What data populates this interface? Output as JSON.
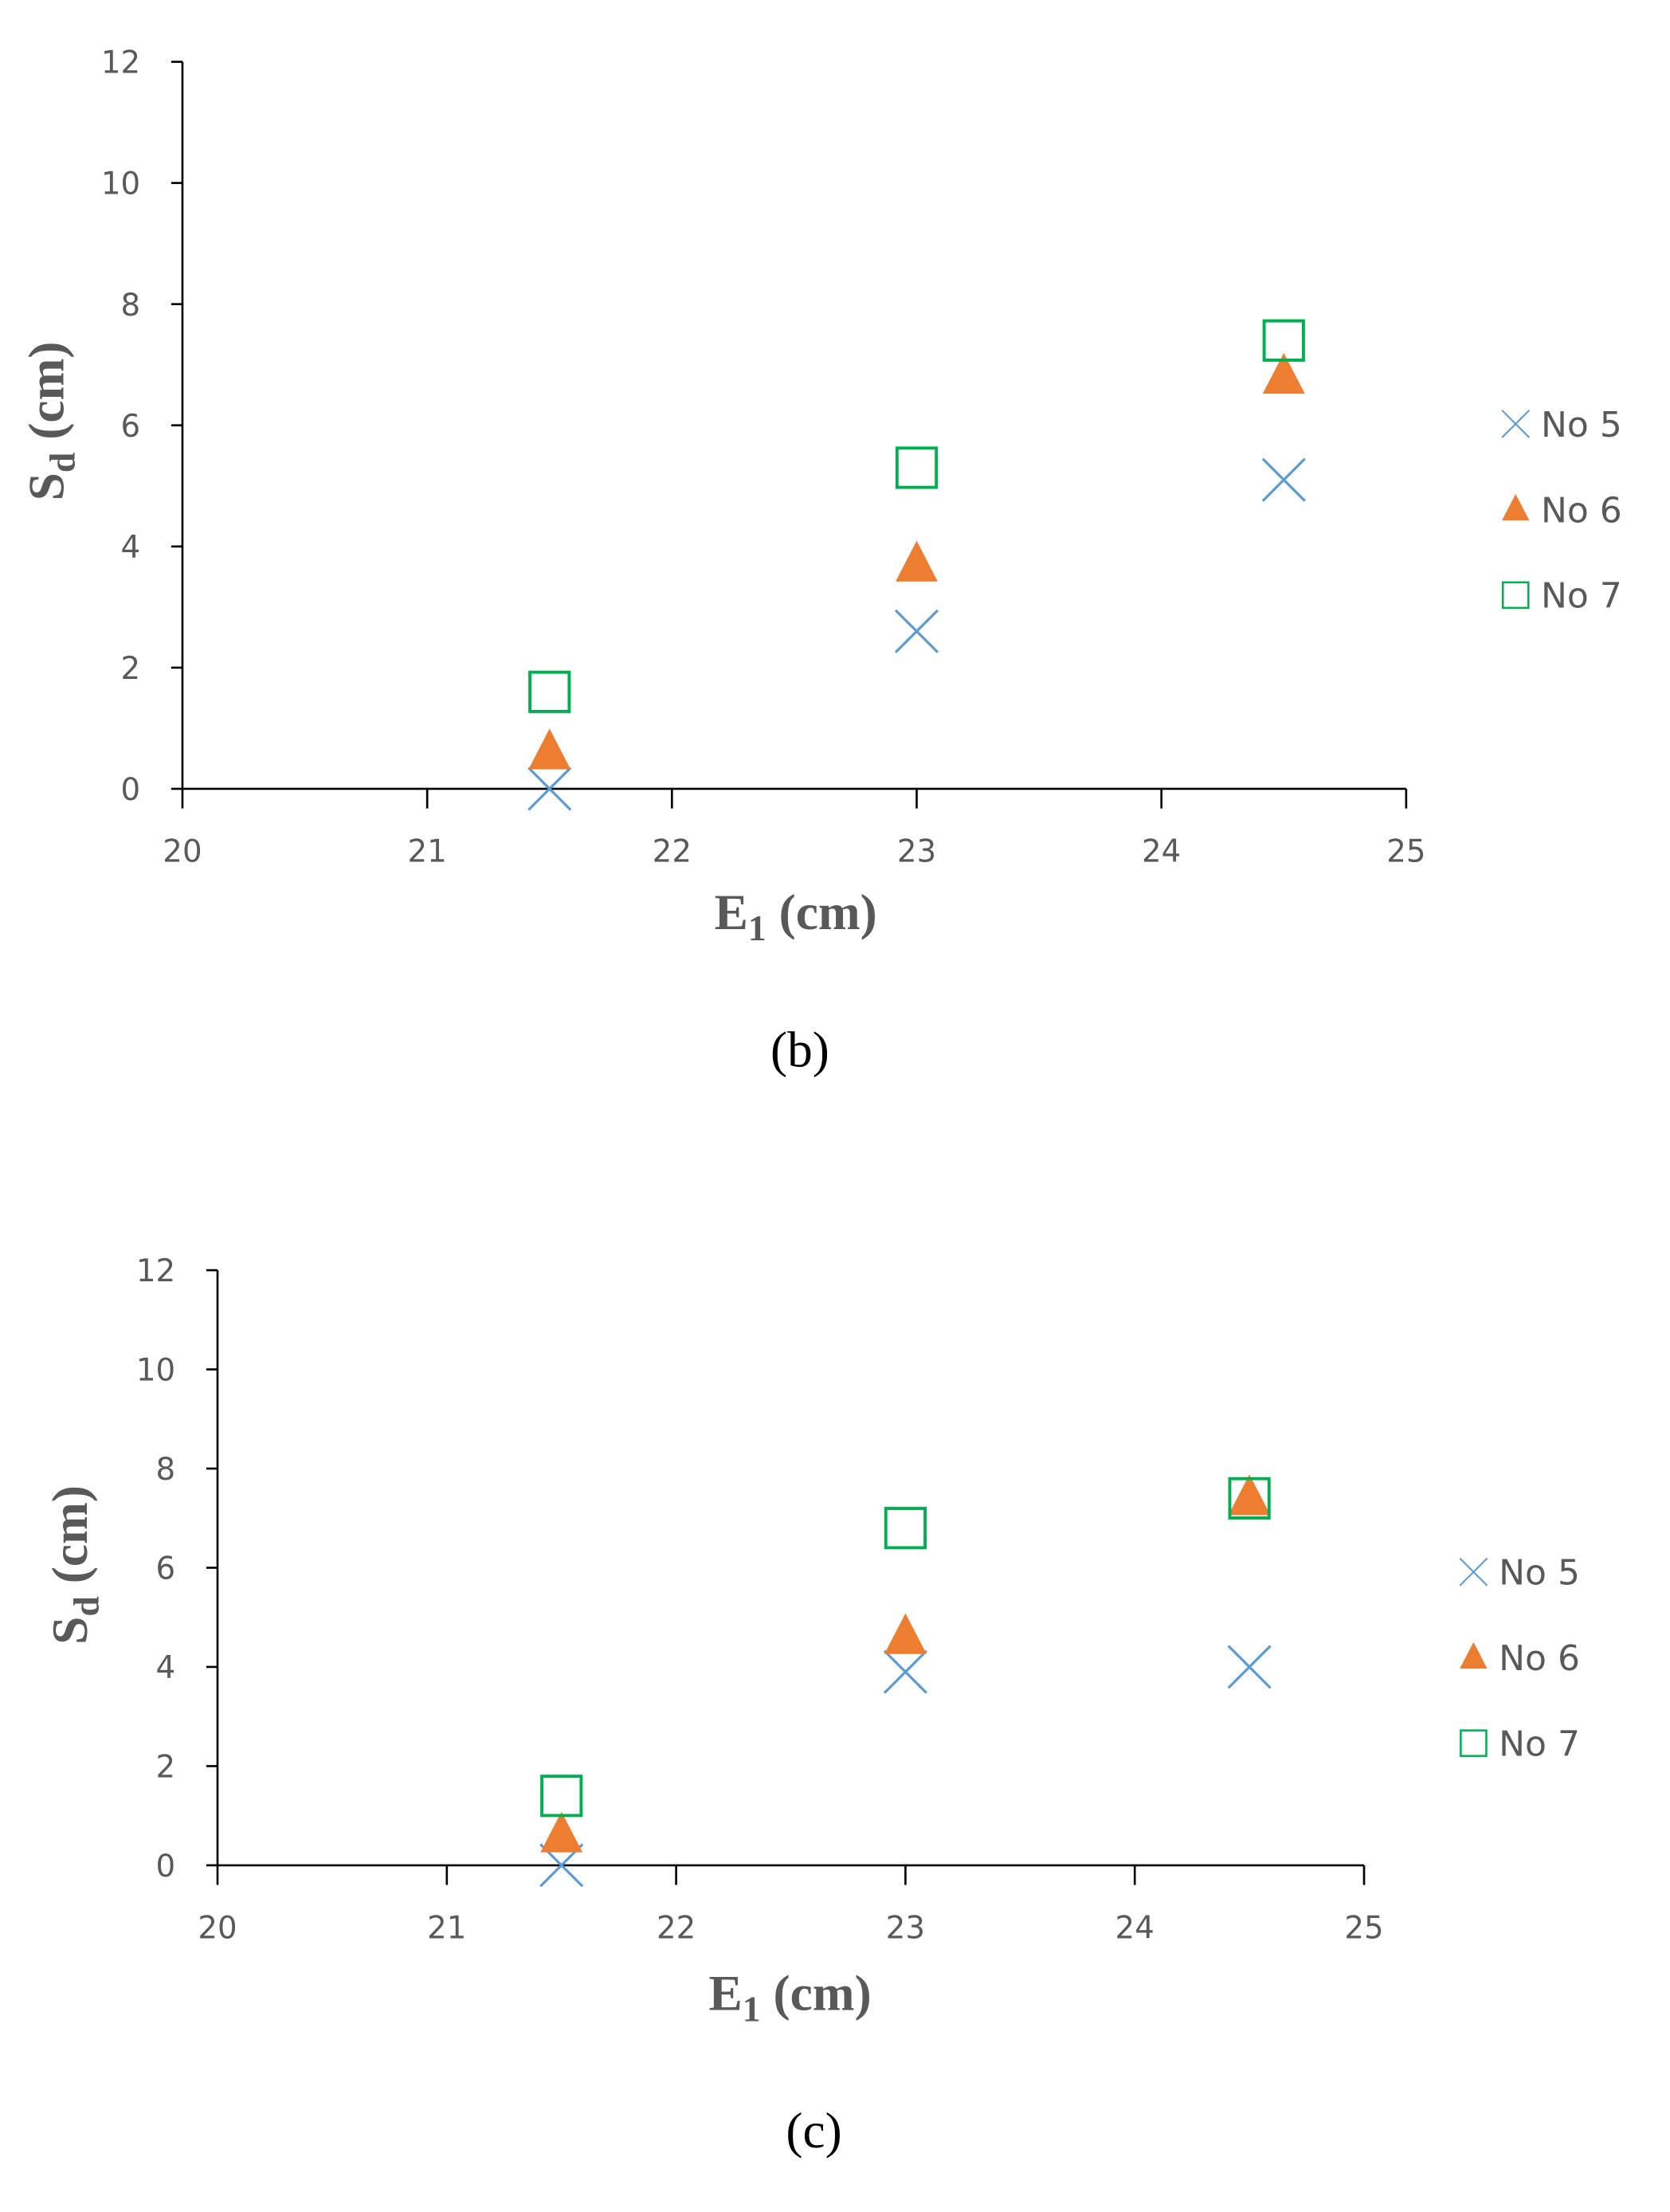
{
  "chart_data": [
    {
      "type": "scatter",
      "caption": "(b)",
      "xlabel": [
        "E",
        "1",
        " (cm)"
      ],
      "ylabel": [
        "S",
        "d",
        " (cm)"
      ],
      "x": [
        21.5,
        23,
        24.5
      ],
      "series": [
        {
          "name": "No 5",
          "color": "#5b9bd5",
          "marker": "x",
          "values": [
            0,
            2.6,
            5.1
          ]
        },
        {
          "name": "No 6",
          "color": "#ed7d31",
          "marker": "triangle",
          "values": [
            0.6,
            3.7,
            6.8
          ]
        },
        {
          "name": "No 7",
          "color": "#00b050",
          "marker": "square",
          "values": [
            1.6,
            5.3,
            7.4
          ]
        }
      ],
      "xlim": [
        20,
        25
      ],
      "ylim": [
        0,
        12
      ],
      "xticks": [
        20,
        21,
        22,
        23,
        24,
        25
      ],
      "yticks": [
        0,
        2,
        4,
        6,
        8,
        10,
        12
      ],
      "legend": "right"
    },
    {
      "type": "scatter",
      "caption": "(c)",
      "xlabel": [
        "E",
        "1",
        " (cm)"
      ],
      "ylabel": [
        "S",
        "d",
        " (cm)"
      ],
      "x": [
        21.5,
        23,
        24.5
      ],
      "series": [
        {
          "name": "No 5",
          "color": "#5b9bd5",
          "marker": "x",
          "values": [
            0,
            3.9,
            4.0
          ]
        },
        {
          "name": "No 6",
          "color": "#ed7d31",
          "marker": "triangle",
          "values": [
            0.6,
            4.6,
            7.4
          ]
        },
        {
          "name": "No 7",
          "color": "#00b050",
          "marker": "square",
          "values": [
            1.4,
            6.8,
            7.4
          ]
        }
      ],
      "xlim": [
        20,
        25
      ],
      "ylim": [
        0,
        12
      ],
      "xticks": [
        20,
        21,
        22,
        23,
        24,
        25
      ],
      "yticks": [
        0,
        2,
        4,
        6,
        8,
        10,
        12
      ],
      "legend": "right"
    }
  ]
}
